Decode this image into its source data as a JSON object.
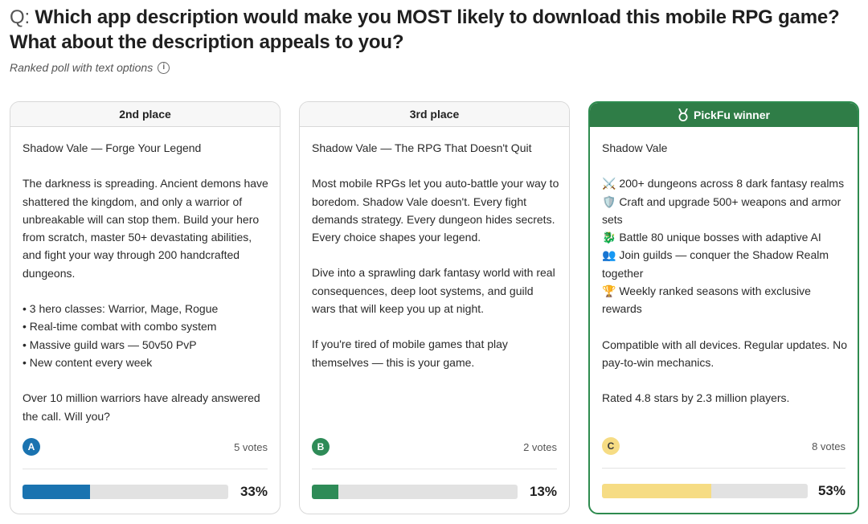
{
  "question": {
    "prefix": "Q:",
    "text": "Which app description would make you MOST likely to download this mobile RPG game? What about the description appeals to you?"
  },
  "subtitle": "Ranked poll with text options",
  "info_icon": "i",
  "colors": {
    "option_a": "#1a73b0",
    "option_b": "#2e8b57",
    "option_c": "#f6dc84",
    "winner_header": "#2f7d47"
  },
  "cards": [
    {
      "header": "2nd place",
      "paragraphs": [
        "Shadow Vale — Forge Your Legend",
        "The darkness is spreading. Ancient demons have shattered the kingdom, and only a warrior of unbreakable will can stop them. Build your hero from scratch, master 50+ devastating abilities, and fight your way through 200 handcrafted dungeons.",
        "• 3 hero classes: Warrior, Mage, Rogue\n• Real-time combat with combo system\n• Massive guild wars — 50v50 PvP\n• New content every week",
        "Over 10 million warriors have already answered the call. Will you?"
      ],
      "option_letter": "A",
      "votes": "5 votes",
      "percent_label": "33%",
      "percent_value": 33
    },
    {
      "header": "3rd place",
      "paragraphs": [
        "Shadow Vale — The RPG That Doesn't Quit",
        "Most mobile RPGs let you auto-battle your way to boredom. Shadow Vale doesn't. Every fight demands strategy. Every dungeon hides secrets. Every choice shapes your legend.",
        "Dive into a sprawling dark fantasy world with real consequences, deep loot systems, and guild wars that will keep you up at night.",
        "If you're tired of mobile games that play themselves — this is your game."
      ],
      "option_letter": "B",
      "votes": "2 votes",
      "percent_label": "13%",
      "percent_value": 13
    },
    {
      "header": "PickFu winner",
      "header_icon": "medal-icon",
      "paragraphs": [
        "Shadow Vale",
        "⚔️ 200+ dungeons across 8 dark fantasy realms\n🛡️ Craft and upgrade 500+ weapons and armor sets\n🐉 Battle 80 unique bosses with adaptive AI\n👥 Join guilds — conquer the Shadow Realm together\n🏆 Weekly ranked seasons with exclusive rewards",
        "Compatible with all devices. Regular updates. No pay-to-win mechanics.",
        "Rated 4.8 stars by 2.3 million players."
      ],
      "option_letter": "C",
      "votes": "8 votes",
      "percent_label": "53%",
      "percent_value": 53
    }
  ]
}
